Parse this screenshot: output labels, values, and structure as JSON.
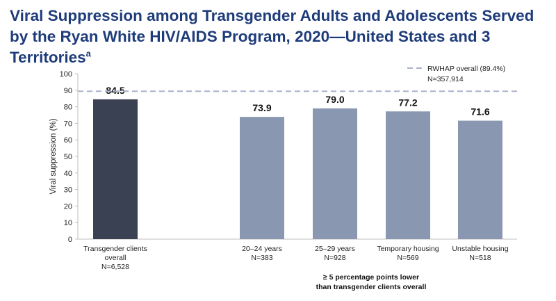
{
  "title": {
    "main": "Viral Suppression among Transgender Adults and Adolescents Served by the Ryan White HIV/AIDS Program, 2020—United States and 3 Territories",
    "superscript": "a"
  },
  "chart_data": {
    "type": "bar",
    "ylabel": "Viral suppression (%)",
    "ylim": [
      0,
      100
    ],
    "yticks": [
      0,
      10,
      20,
      30,
      40,
      50,
      60,
      70,
      80,
      90,
      100
    ],
    "categories": [
      {
        "line1": "Transgender clients",
        "line2": "overall",
        "n": "N=6,528"
      },
      {
        "line1": "20–24 years",
        "line2": "",
        "n": "N=383"
      },
      {
        "line1": "25–29 years",
        "line2": "",
        "n": "N=928"
      },
      {
        "line1": "Temporary housing",
        "line2": "",
        "n": "N=569"
      },
      {
        "line1": "Unstable housing",
        "line2": "",
        "n": "N=518"
      }
    ],
    "values": [
      84.5,
      73.9,
      79.0,
      77.2,
      71.6
    ],
    "value_labels": [
      "84.5",
      "73.9",
      "79.0",
      "77.2",
      "71.6"
    ],
    "colors": [
      "#3a4152",
      "#8a97b0",
      "#8a97b0",
      "#8a97b0",
      "#8a97b0"
    ],
    "reference_line": {
      "value": 89.4,
      "label": "RWHAP overall (89.4%)",
      "n": "N=357,914",
      "color": "#aab2cc",
      "style": "dashed"
    },
    "group_note": {
      "line1": "≥ 5 percentage points lower",
      "line2": "than transgender clients overall"
    },
    "grid": false
  }
}
